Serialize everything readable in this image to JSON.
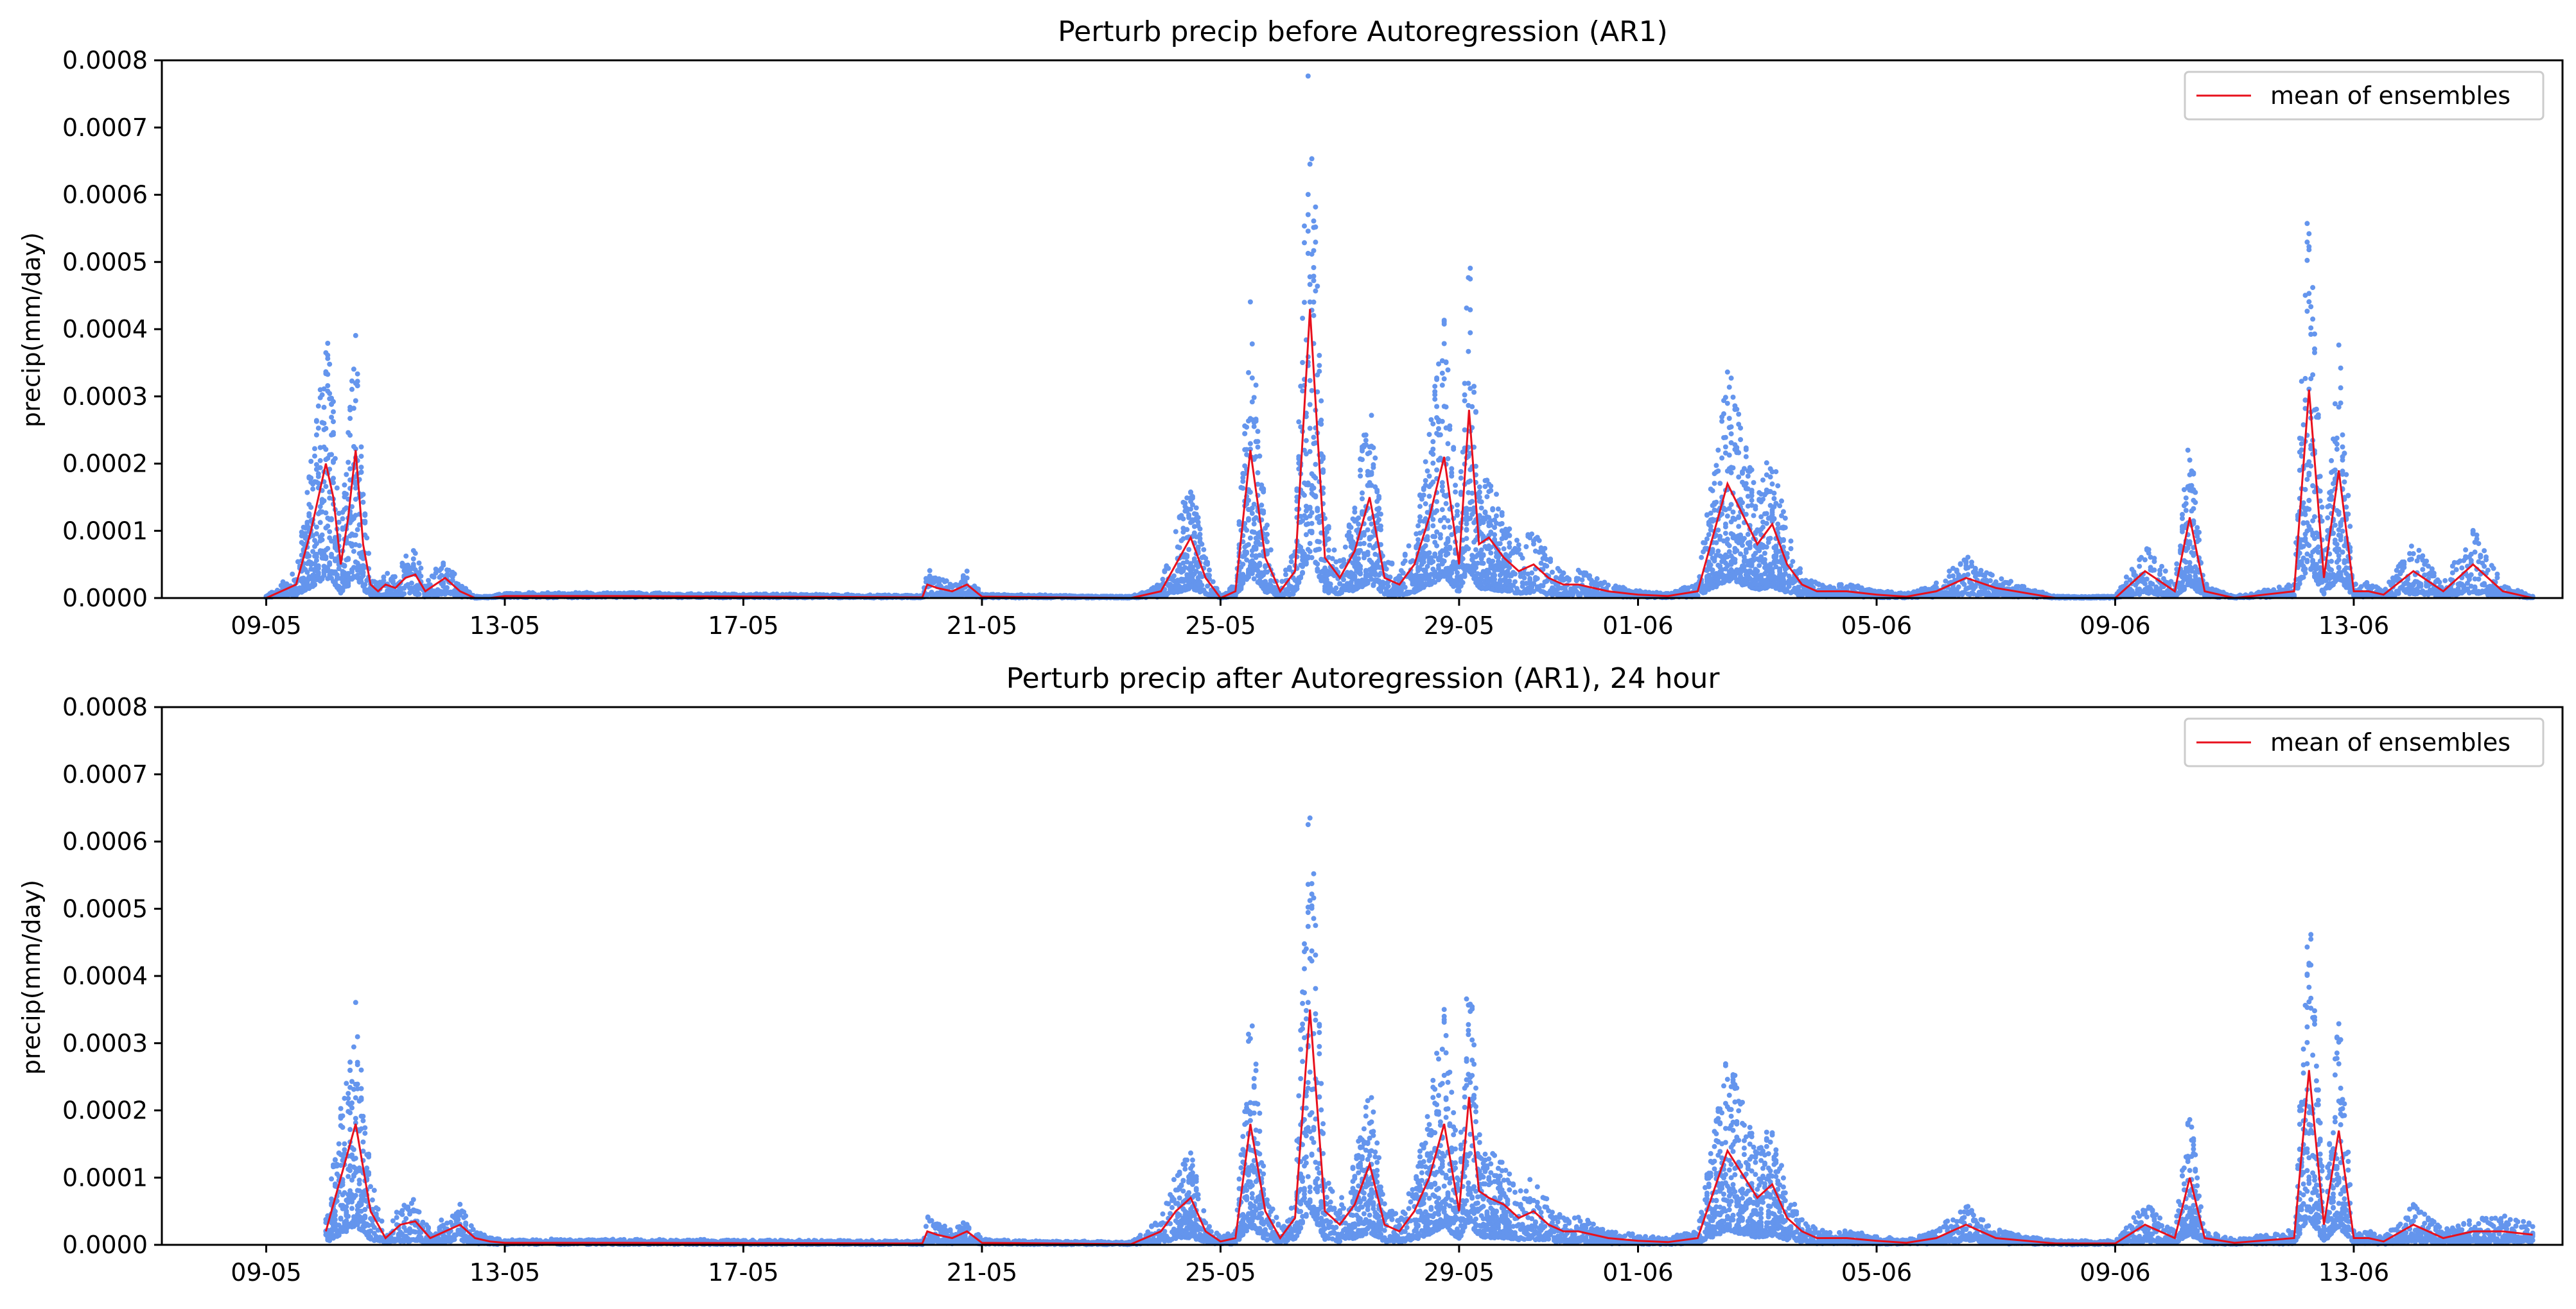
{
  "colors": {
    "scatter": "#6495ed",
    "mean": "#e8101c",
    "axis": "#000000"
  },
  "chart_data": [
    {
      "type": "scatter",
      "title": "Perturb precip before Autoregression (AR1)",
      "xlabel": "",
      "ylabel": "precip(mm/day)",
      "ylim": [
        0,
        0.0008
      ],
      "xlim": [
        "2019-05-07T06:00",
        "2019-06-16T12:00"
      ],
      "x_ticks": [
        "2019-05-09",
        "2019-05-13",
        "2019-05-17",
        "2019-05-21",
        "2019-05-25",
        "2019-05-29",
        "2019-06-01",
        "2019-06-05",
        "2019-06-09",
        "2019-06-13"
      ],
      "x_tick_labels": [
        "09-05",
        "13-05",
        "17-05",
        "21-05",
        "25-05",
        "29-05",
        "01-06",
        "05-06",
        "09-06",
        "13-06"
      ],
      "y_ticks": [
        0,
        0.0001,
        0.0002,
        0.0003,
        0.0004,
        0.0005,
        0.0006,
        0.0007,
        0.0008
      ],
      "y_tick_labels": [
        "0.0000",
        "0.0001",
        "0.0002",
        "0.0003",
        "0.0004",
        "0.0005",
        "0.0006",
        "0.0007",
        "0.0008"
      ],
      "grid": false,
      "legend": {
        "placement": "top-right",
        "entries": [
          "mean of ensembles"
        ]
      },
      "series": [
        {
          "name": "mean of ensembles",
          "kind": "line",
          "x": [
            "2019-05-09T00:00",
            "2019-05-09T12:00",
            "2019-05-09T18:00",
            "2019-05-10T00:00",
            "2019-05-10T03:00",
            "2019-05-10T06:00",
            "2019-05-10T09:00",
            "2019-05-10T12:00",
            "2019-05-10T15:00",
            "2019-05-10T18:00",
            "2019-05-10T21:00",
            "2019-05-11T00:00",
            "2019-05-11T04:00",
            "2019-05-11T08:00",
            "2019-05-11T12:00",
            "2019-05-11T16:00",
            "2019-05-11T20:00",
            "2019-05-12T00:00",
            "2019-05-12T06:00",
            "2019-05-12T12:00",
            "2019-05-12T18:00",
            "2019-05-13T00:00",
            "2019-05-15T00:00",
            "2019-05-20T00:00",
            "2019-05-20T02:00",
            "2019-05-20T06:00",
            "2019-05-20T12:00",
            "2019-05-20T18:00",
            "2019-05-21T00:00",
            "2019-05-23T12:00",
            "2019-05-24T00:00",
            "2019-05-24T06:00",
            "2019-05-24T12:00",
            "2019-05-24T18:00",
            "2019-05-25T00:00",
            "2019-05-25T06:00",
            "2019-05-25T12:00",
            "2019-05-25T18:00",
            "2019-05-26T00:00",
            "2019-05-26T06:00",
            "2019-05-26T12:00",
            "2019-05-26T18:00",
            "2019-05-27T00:00",
            "2019-05-27T06:00",
            "2019-05-27T12:00",
            "2019-05-27T18:00",
            "2019-05-28T00:00",
            "2019-05-28T06:00",
            "2019-05-28T12:00",
            "2019-05-28T18:00",
            "2019-05-29T00:00",
            "2019-05-29T04:00",
            "2019-05-29T08:00",
            "2019-05-29T12:00",
            "2019-05-29T18:00",
            "2019-05-30T00:00",
            "2019-05-30T06:00",
            "2019-05-30T12:00",
            "2019-05-30T18:00",
            "2019-05-31T00:00",
            "2019-05-31T12:00",
            "2019-06-01T00:00",
            "2019-06-01T12:00",
            "2019-06-02T00:00",
            "2019-06-02T12:00",
            "2019-06-03T00:00",
            "2019-06-03T06:00",
            "2019-06-03T12:00",
            "2019-06-03T18:00",
            "2019-06-04T00:00",
            "2019-06-04T12:00",
            "2019-06-05T00:00",
            "2019-06-05T12:00",
            "2019-06-06T00:00",
            "2019-06-06T12:00",
            "2019-06-07T00:00",
            "2019-06-08T00:00",
            "2019-06-09T00:00",
            "2019-06-09T12:00",
            "2019-06-10T00:00",
            "2019-06-10T06:00",
            "2019-06-10T12:00",
            "2019-06-11T00:00",
            "2019-06-12T00:00",
            "2019-06-12T06:00",
            "2019-06-12T12:00",
            "2019-06-12T18:00",
            "2019-06-13T00:00",
            "2019-06-13T06:00",
            "2019-06-13T12:00",
            "2019-06-14T00:00",
            "2019-06-14T12:00",
            "2019-06-15T00:00",
            "2019-06-15T12:00",
            "2019-06-16T00:00"
          ],
          "y": [
            0,
            2e-05,
            0.0001,
            0.0002,
            0.00015,
            5e-05,
            0.00012,
            0.00022,
            8e-05,
            2e-05,
            1e-05,
            2e-05,
            1.5e-05,
            3e-05,
            3.5e-05,
            1e-05,
            2e-05,
            3e-05,
            1e-05,
            0,
            0,
            3e-06,
            3e-06,
            1e-06,
            2e-05,
            1.5e-05,
            1e-05,
            2e-05,
            2e-06,
            0,
            1e-05,
            5e-05,
            9e-05,
            3e-05,
            0,
            1e-05,
            0.00022,
            6e-05,
            1e-05,
            4e-05,
            0.00043,
            6e-05,
            3e-05,
            7e-05,
            0.00015,
            3e-05,
            2e-05,
            5e-05,
            0.00012,
            0.00021,
            5e-05,
            0.00028,
            8e-05,
            9e-05,
            6e-05,
            4e-05,
            5e-05,
            3e-05,
            2e-05,
            2e-05,
            1e-05,
            5e-06,
            3e-06,
            1e-05,
            0.00017,
            8e-05,
            0.00011,
            5e-05,
            2e-05,
            1e-05,
            1e-05,
            5e-06,
            2e-06,
            1e-05,
            3e-05,
            1.5e-05,
            0,
            0,
            4e-05,
            1e-05,
            0.00012,
            1e-05,
            0,
            1e-05,
            0.00031,
            3e-05,
            0.00019,
            1e-05,
            1e-05,
            5e-06,
            4e-05,
            1e-05,
            5e-05,
            1e-05,
            0
          ]
        }
      ]
    },
    {
      "type": "scatter",
      "title": "Perturb precip after Autoregression (AR1), 24 hour",
      "xlabel": "",
      "ylabel": "precip(mm/day)",
      "ylim": [
        0,
        0.0008
      ],
      "xlim": [
        "2019-05-07T06:00",
        "2019-06-16T12:00"
      ],
      "x_ticks": [
        "2019-05-09",
        "2019-05-13",
        "2019-05-17",
        "2019-05-21",
        "2019-05-25",
        "2019-05-29",
        "2019-06-01",
        "2019-06-05",
        "2019-06-09",
        "2019-06-13"
      ],
      "x_tick_labels": [
        "09-05",
        "13-05",
        "17-05",
        "21-05",
        "25-05",
        "29-05",
        "01-06",
        "05-06",
        "09-06",
        "13-06"
      ],
      "y_ticks": [
        0,
        0.0001,
        0.0002,
        0.0003,
        0.0004,
        0.0005,
        0.0006,
        0.0007,
        0.0008
      ],
      "y_tick_labels": [
        "0.0000",
        "0.0001",
        "0.0002",
        "0.0003",
        "0.0004",
        "0.0005",
        "0.0006",
        "0.0007",
        "0.0008"
      ],
      "grid": false,
      "legend": {
        "placement": "top-right",
        "entries": [
          "mean of ensembles"
        ]
      },
      "series": [
        {
          "name": "mean of ensembles",
          "kind": "line",
          "x": [
            "2019-05-10T00:00",
            "2019-05-10T06:00",
            "2019-05-10T12:00",
            "2019-05-10T18:00",
            "2019-05-11T00:00",
            "2019-05-11T06:00",
            "2019-05-11T12:00",
            "2019-05-11T18:00",
            "2019-05-12T00:00",
            "2019-05-12T06:00",
            "2019-05-12T12:00",
            "2019-05-12T18:00",
            "2019-05-13T00:00",
            "2019-05-15T00:00",
            "2019-05-20T00:00",
            "2019-05-20T02:00",
            "2019-05-20T06:00",
            "2019-05-20T12:00",
            "2019-05-20T18:00",
            "2019-05-21T00:00",
            "2019-05-23T12:00",
            "2019-05-24T00:00",
            "2019-05-24T06:00",
            "2019-05-24T12:00",
            "2019-05-24T18:00",
            "2019-05-25T00:00",
            "2019-05-25T06:00",
            "2019-05-25T12:00",
            "2019-05-25T18:00",
            "2019-05-26T00:00",
            "2019-05-26T06:00",
            "2019-05-26T12:00",
            "2019-05-26T18:00",
            "2019-05-27T00:00",
            "2019-05-27T06:00",
            "2019-05-27T12:00",
            "2019-05-27T18:00",
            "2019-05-28T00:00",
            "2019-05-28T06:00",
            "2019-05-28T12:00",
            "2019-05-28T18:00",
            "2019-05-29T00:00",
            "2019-05-29T04:00",
            "2019-05-29T08:00",
            "2019-05-29T12:00",
            "2019-05-29T18:00",
            "2019-05-30T00:00",
            "2019-05-30T06:00",
            "2019-05-30T12:00",
            "2019-05-30T18:00",
            "2019-05-31T00:00",
            "2019-05-31T12:00",
            "2019-06-01T00:00",
            "2019-06-01T12:00",
            "2019-06-02T00:00",
            "2019-06-02T12:00",
            "2019-06-03T00:00",
            "2019-06-03T06:00",
            "2019-06-03T12:00",
            "2019-06-03T18:00",
            "2019-06-04T00:00",
            "2019-06-04T12:00",
            "2019-06-05T00:00",
            "2019-06-05T12:00",
            "2019-06-06T00:00",
            "2019-06-06T12:00",
            "2019-06-07T00:00",
            "2019-06-08T00:00",
            "2019-06-09T00:00",
            "2019-06-09T12:00",
            "2019-06-10T00:00",
            "2019-06-10T06:00",
            "2019-06-10T12:00",
            "2019-06-11T00:00",
            "2019-06-12T00:00",
            "2019-06-12T06:00",
            "2019-06-12T12:00",
            "2019-06-12T18:00",
            "2019-06-13T00:00",
            "2019-06-13T06:00",
            "2019-06-13T12:00",
            "2019-06-14T00:00",
            "2019-06-14T12:00",
            "2019-06-15T00:00",
            "2019-06-15T12:00",
            "2019-06-16T00:00"
          ],
          "y": [
            2e-05,
            0.0001,
            0.00018,
            5e-05,
            1e-05,
            3e-05,
            3.5e-05,
            1e-05,
            2e-05,
            3e-05,
            1e-05,
            5e-06,
            3e-06,
            3e-06,
            2e-06,
            2e-05,
            1.5e-05,
            1e-05,
            2e-05,
            3e-06,
            1e-06,
            2e-05,
            5e-05,
            7e-05,
            2e-05,
            5e-06,
            1e-05,
            0.00018,
            5e-05,
            1e-05,
            4e-05,
            0.00035,
            5e-05,
            3e-05,
            6e-05,
            0.00012,
            3e-05,
            2e-05,
            5e-05,
            0.0001,
            0.00018,
            5e-05,
            0.00022,
            8e-05,
            7e-05,
            6e-05,
            4e-05,
            5e-05,
            3e-05,
            2e-05,
            2e-05,
            1e-05,
            6e-06,
            4e-06,
            1e-05,
            0.00014,
            7e-05,
            9e-05,
            4e-05,
            2e-05,
            1e-05,
            1e-05,
            6e-06,
            3e-06,
            1e-05,
            3e-05,
            1e-05,
            2e-06,
            2e-06,
            3e-05,
            1e-05,
            0.0001,
            1e-05,
            3e-06,
            1e-05,
            0.00026,
            3e-05,
            0.00017,
            1e-05,
            1e-05,
            5e-06,
            3e-05,
            1e-05,
            2e-05,
            2e-05,
            1.5e-05
          ]
        }
      ]
    }
  ]
}
